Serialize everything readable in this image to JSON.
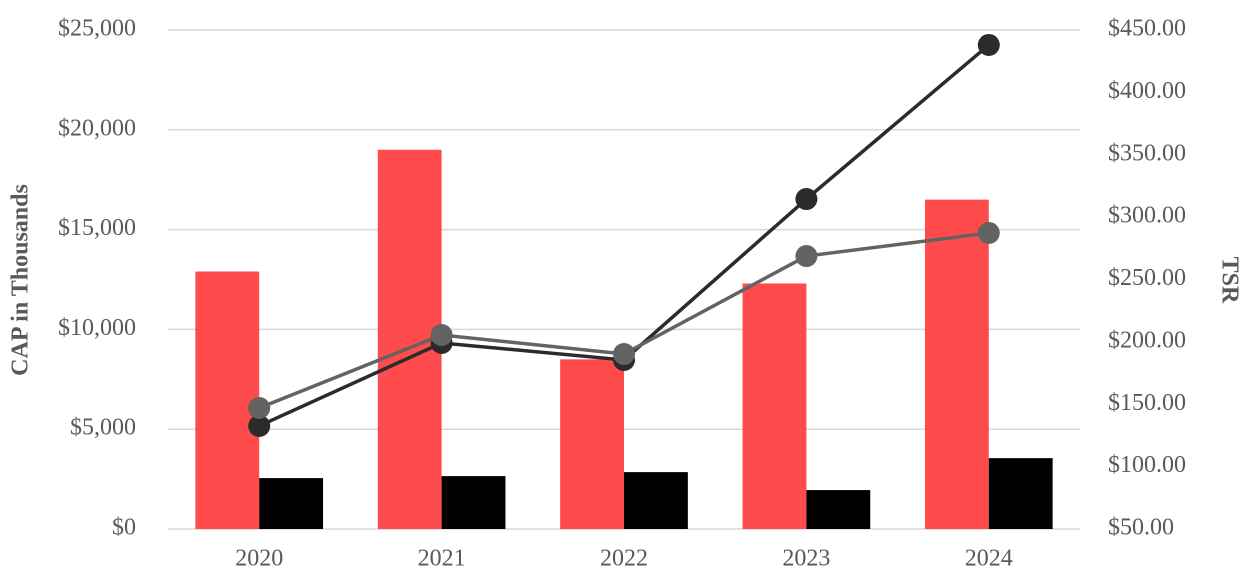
{
  "chart_data": {
    "type": "bar",
    "y_label": "CAP in Thousands",
    "y2_label": "TSR",
    "categories": [
      "2020",
      "2021",
      "2022",
      "2023",
      "2024"
    ],
    "series": [
      {
        "type": "bar",
        "color": "#ff4b4b",
        "values": [
          12900,
          19000,
          8500,
          12300,
          16500
        ]
      },
      {
        "type": "bar",
        "color": "#000000",
        "values": [
          2550,
          2650,
          2850,
          1950,
          3550
        ]
      },
      {
        "type": "line",
        "axis": "y2",
        "color": "#2b2b2b",
        "values": [
          132.6,
          199.1,
          185.5,
          314.5,
          438
        ]
      },
      {
        "type": "line",
        "axis": "y2",
        "color": "#636363",
        "values": [
          147,
          205.5,
          190.3,
          268.8,
          287.3
        ]
      }
    ],
    "ylim": [
      0,
      25000
    ],
    "yticks": [
      {
        "value": 0,
        "label": "$0"
      },
      {
        "value": 5000,
        "label": "$5,000"
      },
      {
        "value": 10000,
        "label": "$10,000"
      },
      {
        "value": 15000,
        "label": "$15,000"
      },
      {
        "value": 20000,
        "label": "$20,000"
      },
      {
        "value": 25000,
        "label": "$25,000"
      }
    ],
    "y2lim": [
      50,
      450
    ],
    "y2ticks": [
      {
        "value": 50,
        "label": "$50.00"
      },
      {
        "value": 100,
        "label": "$100.00"
      },
      {
        "value": 150,
        "label": "$150.00"
      },
      {
        "value": 200,
        "label": "$200.00"
      },
      {
        "value": 250,
        "label": "$250.00"
      },
      {
        "value": 300,
        "label": "$300.00"
      },
      {
        "value": 350,
        "label": "$350.00"
      },
      {
        "value": 400,
        "label": "$400.00"
      },
      {
        "value": 450,
        "label": "$450.00"
      }
    ],
    "grid": true
  }
}
